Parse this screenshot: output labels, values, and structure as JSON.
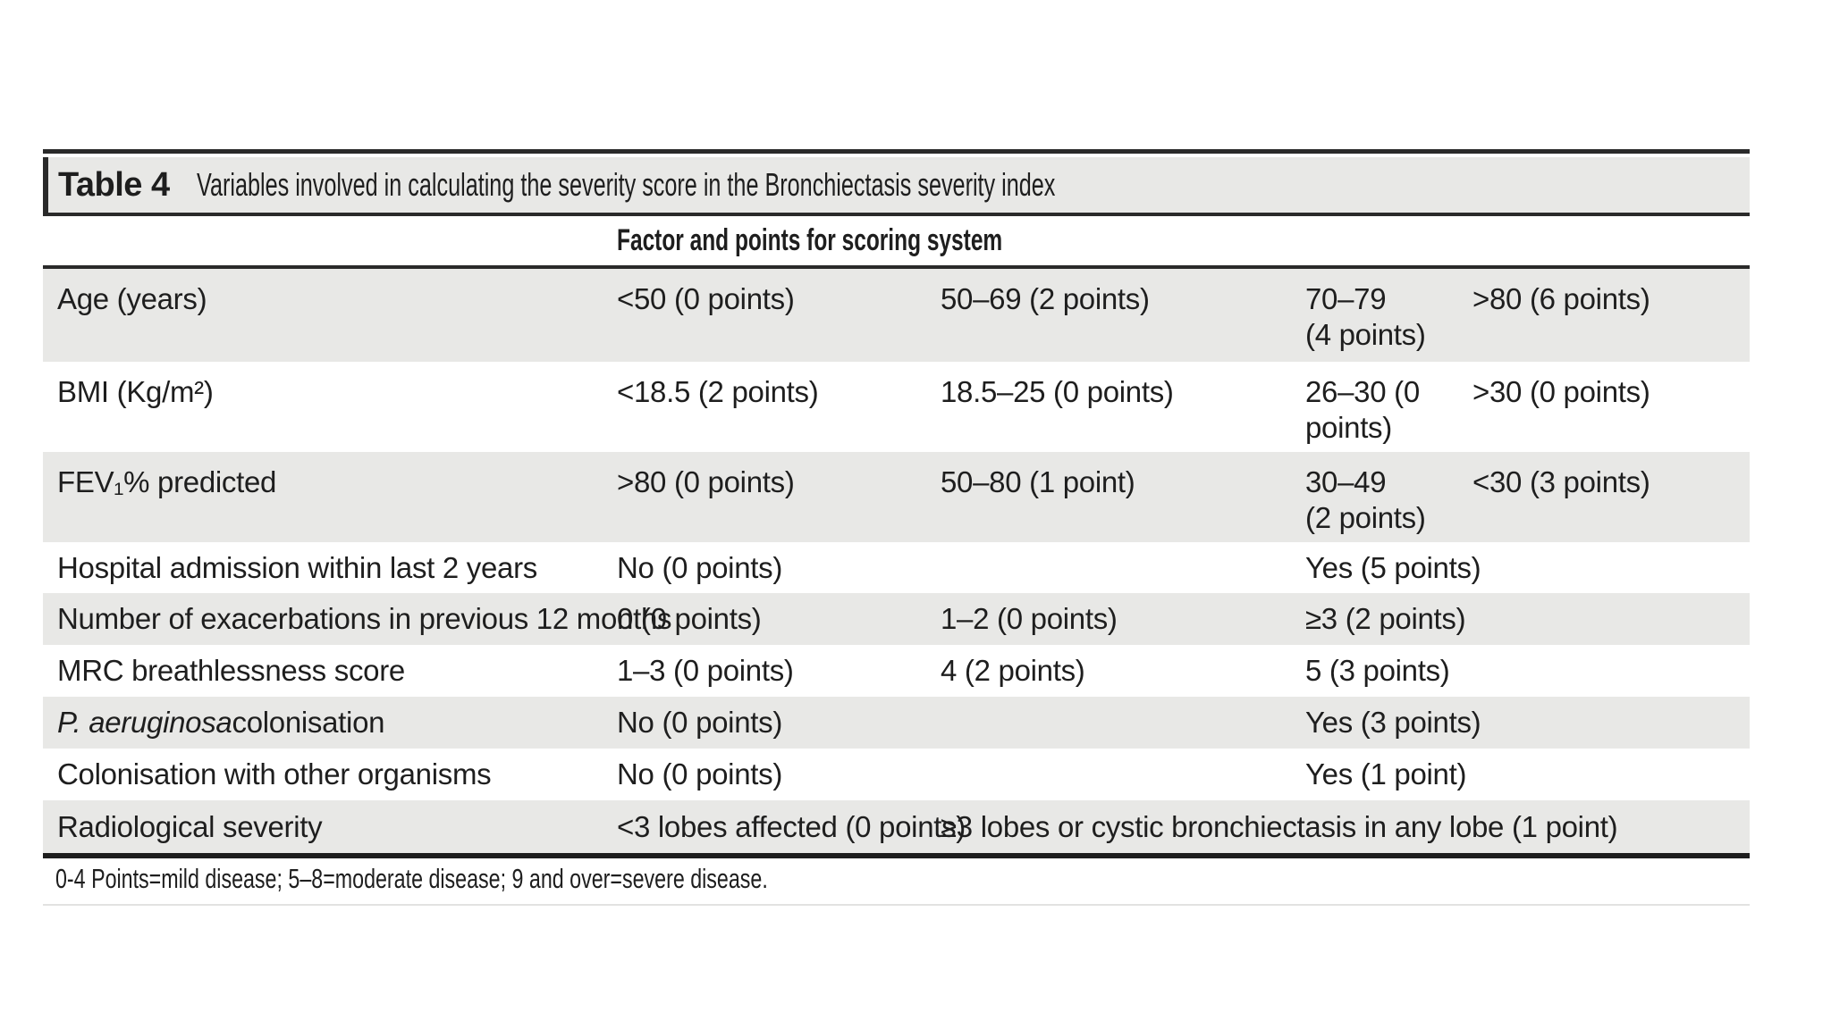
{
  "table": {
    "title_label": "Table 4",
    "title_text": "Variables involved in calculating the severity score in the Bronchiectasis severity index",
    "header": "Factor and points for scoring system",
    "rows": [
      {
        "factor": "Age (years)",
        "c2": "<50 (0 points)",
        "c3": "50–69 (2 points)",
        "c4": "70–79\n(4 points)",
        "c5": ">80 (6 points)"
      },
      {
        "factor": "BMI (Kg/m²)",
        "c2": "<18.5 (2 points)",
        "c3": "18.5–25 (0 points)",
        "c4": "26–30 (0\npoints)",
        "c5": ">30 (0 points)"
      },
      {
        "factor": "FEV₁% predicted",
        "c2": ">80 (0 points)",
        "c3": "50–80 (1 point)",
        "c4": "30–49\n(2 points)",
        "c5": "<30 (3 points)"
      },
      {
        "factor": "Hospital admission within last 2 years",
        "c2": "No (0 points)",
        "c3": "",
        "c4": "Yes (5 points)",
        "c5": ""
      },
      {
        "factor": "Number of exacerbations in previous 12 months",
        "c2": "0 (0 points)",
        "c3": "1–2 (0 points)",
        "c4": "≥3 (2 points)",
        "c5": ""
      },
      {
        "factor": "MRC breathlessness score",
        "c2": "1–3 (0 points)",
        "c3": "4 (2 points)",
        "c4": "5 (3 points)",
        "c5": ""
      },
      {
        "factor_italic": "P. aeruginosa",
        "factor_rest": " colonisation",
        "c2": "No (0 points)",
        "c3": "",
        "c4": "Yes (3 points)",
        "c5": ""
      },
      {
        "factor": "Colonisation with other organisms",
        "c2": "No (0 points)",
        "c3": "",
        "c4": "Yes (1 point)",
        "c5": ""
      },
      {
        "factor": "Radiological severity",
        "c2": "<3 lobes affected (0 points)",
        "c3": "≥3 lobes or cystic bronchiectasis in any lobe (1 point)",
        "c4": "",
        "c5": ""
      }
    ],
    "footnote": "0-4 Points=mild disease; 5–8=moderate disease; 9 and over=severe disease."
  },
  "colors": {
    "band_gray": "#e8e8e6",
    "rule_dark": "#2a2a2a",
    "text": "#1e1e1e",
    "faint_rule": "#e2e2e1",
    "background": "#ffffff"
  }
}
